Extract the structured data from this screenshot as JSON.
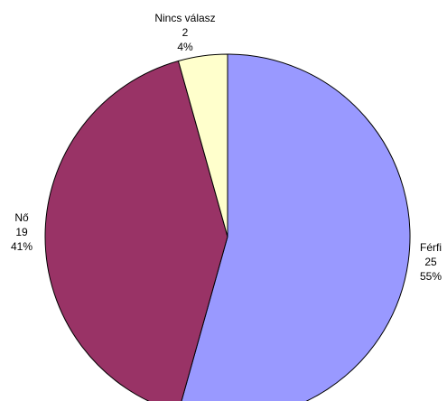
{
  "chart_data": {
    "type": "pie",
    "start_angle_deg": 0,
    "direction": "clockwise",
    "slices": [
      {
        "label": "Férfi",
        "value": 25,
        "percent": "55%",
        "color": "#9999FF"
      },
      {
        "label": "Nő",
        "value": 19,
        "percent": "41%",
        "color": "#993366"
      },
      {
        "label": "Nincs válasz",
        "value": 2,
        "percent": "4%",
        "color": "#FFFFCC"
      }
    ]
  }
}
